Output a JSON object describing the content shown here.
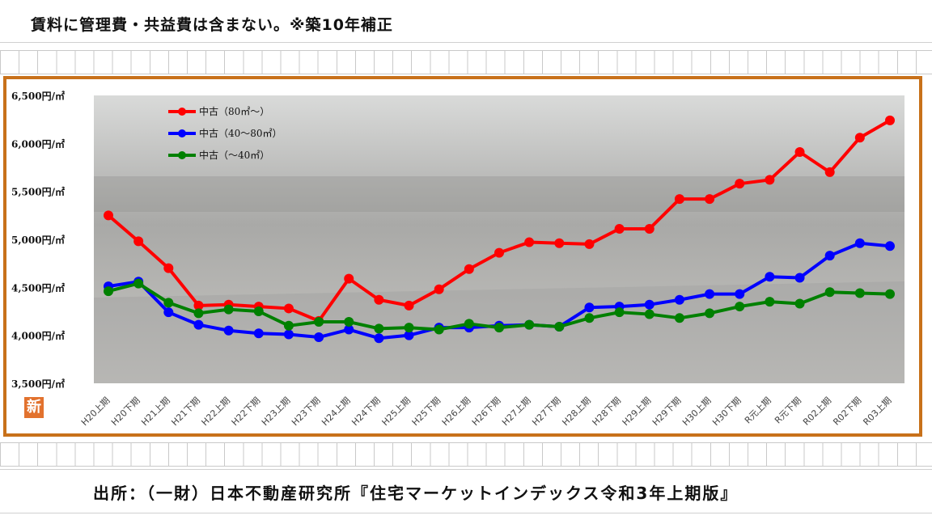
{
  "header": {
    "note": "賃料に管理費・共益費は含まない。※築10年補正"
  },
  "footer": {
    "source": "出所：（一財）日本不動産研究所『住宅マーケットインデックス令和3年上期版』"
  },
  "badge": {
    "label": "新"
  },
  "colors": {
    "frame": "#c8711a",
    "red": "#ff0000",
    "blue": "#0000ff",
    "green": "#008000"
  },
  "chart_data": {
    "type": "line",
    "title": "",
    "xlabel": "",
    "ylabel": "",
    "ylim": [
      3500,
      6500
    ],
    "yticks": [
      3500,
      4000,
      4500,
      5000,
      5500,
      6000,
      6500
    ],
    "ytick_labels": [
      "3,500円/㎡",
      "4,000円/㎡",
      "4,500円/㎡",
      "5,000円/㎡",
      "5,500円/㎡",
      "6,000円/㎡",
      "6,500円/㎡"
    ],
    "grid": false,
    "legend_position": "top-left",
    "background": "photo of elevated highway and street",
    "categories": [
      "H20上期",
      "H20下期",
      "H21上期",
      "H21下期",
      "H22上期",
      "H22下期",
      "H23上期",
      "H23下期",
      "H24上期",
      "H24下期",
      "H25上期",
      "H25下期",
      "H26上期",
      "H26下期",
      "H27上期",
      "H27下期",
      "H28上期",
      "H28下期",
      "H29上期",
      "H29下期",
      "H30上期",
      "H30下期",
      "R元上期",
      "R元下期",
      "R02上期",
      "R02下期",
      "R03上期"
    ],
    "series": [
      {
        "name": "中古（80㎡～）",
        "color": "#ff0000",
        "values": [
          5250,
          4980,
          4700,
          4310,
          4320,
          4300,
          4280,
          4150,
          4590,
          4370,
          4310,
          4480,
          4690,
          4860,
          4970,
          4960,
          4950,
          5110,
          5110,
          5420,
          5420,
          5580,
          5620,
          5910,
          5700,
          6060,
          6240
        ]
      },
      {
        "name": "中古（40～80㎡）",
        "color": "#0000ff",
        "values": [
          4510,
          4560,
          4240,
          4110,
          4050,
          4020,
          4010,
          3980,
          4060,
          3970,
          4000,
          4080,
          4080,
          4100,
          4110,
          4090,
          4290,
          4300,
          4320,
          4370,
          4430,
          4430,
          4610,
          4600,
          4830,
          4960,
          4930
        ]
      },
      {
        "name": "中古（～40㎡）",
        "color": "#008000",
        "values": [
          4460,
          4540,
          4340,
          4230,
          4270,
          4250,
          4100,
          4140,
          4140,
          4070,
          4080,
          4060,
          4120,
          4080,
          4110,
          4090,
          4180,
          4240,
          4220,
          4180,
          4230,
          4300,
          4350,
          4330,
          4450,
          4440,
          4430
        ]
      }
    ]
  }
}
